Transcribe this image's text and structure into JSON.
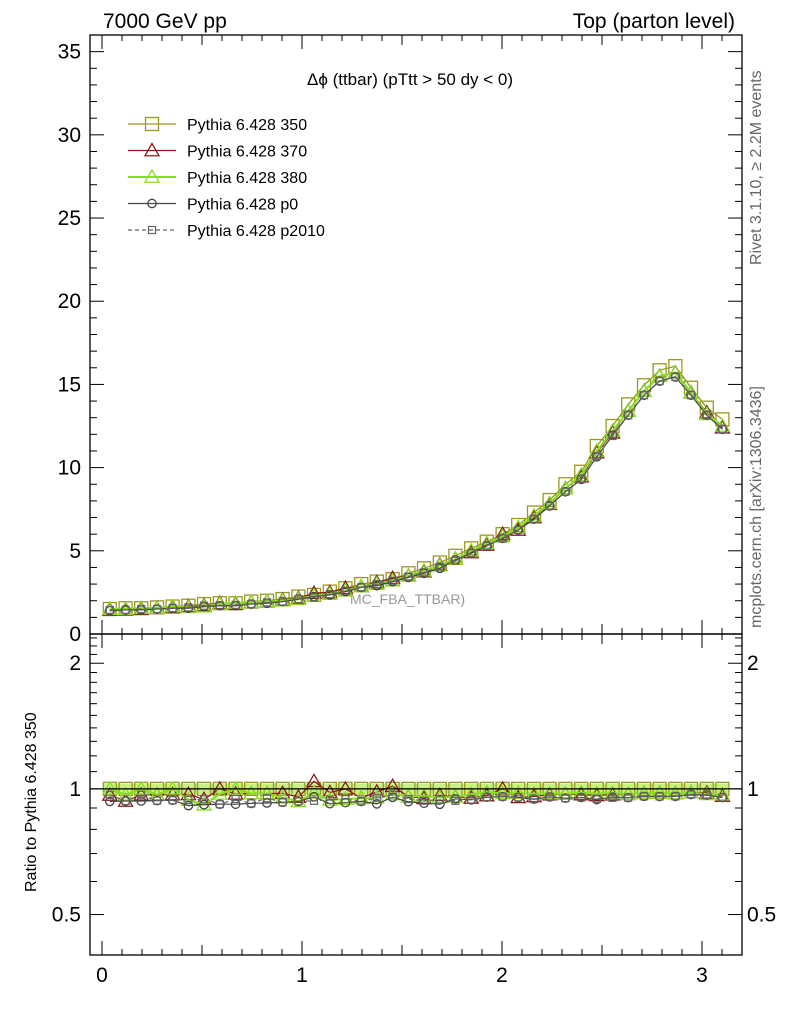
{
  "header": {
    "left": "7000 GeV pp",
    "right": "Top (parton level)"
  },
  "side_labels": {
    "rivet": "Rivet 3.1.10, ≥ 2.2M events",
    "mcplots": "mcplots.cern.ch [arXiv:1306.3436]"
  },
  "chart_data": [
    {
      "type": "line",
      "title": "Δϕ (ttbar) (pTtt > 50 dy < 0)",
      "watermark": "MC_FBA_TTBAR)",
      "xlabel": "",
      "ylabel": "",
      "xlim": [
        -0.06,
        3.2
      ],
      "ylim": [
        0,
        36
      ],
      "yticks": [
        0,
        5,
        10,
        15,
        20,
        25,
        30,
        35
      ],
      "legend_position": "top-left",
      "x": [
        0.039,
        0.118,
        0.196,
        0.275,
        0.353,
        0.432,
        0.51,
        0.589,
        0.668,
        0.746,
        0.825,
        0.903,
        0.982,
        1.06,
        1.139,
        1.217,
        1.296,
        1.374,
        1.453,
        1.532,
        1.61,
        1.689,
        1.767,
        1.846,
        1.924,
        2.003,
        2.081,
        2.16,
        2.238,
        2.317,
        2.396,
        2.474,
        2.553,
        2.631,
        2.71,
        2.788,
        2.867,
        2.945,
        3.024,
        3.102
      ],
      "series": [
        {
          "name": "Pythia 6.428 350",
          "color": "#999922",
          "marker": "square",
          "dash": false,
          "values": [
            1.5,
            1.55,
            1.55,
            1.6,
            1.65,
            1.7,
            1.8,
            1.85,
            1.85,
            1.95,
            2.0,
            2.1,
            2.25,
            2.35,
            2.55,
            2.75,
            3.0,
            3.15,
            3.3,
            3.65,
            3.95,
            4.3,
            4.7,
            5.15,
            5.55,
            6.0,
            6.55,
            7.3,
            8.05,
            9.0,
            9.75,
            11.3,
            12.5,
            13.8,
            14.95,
            15.85,
            16.1,
            14.8,
            13.6,
            12.9
          ]
        },
        {
          "name": "Pythia 6.428 370",
          "color": "#8b1a1a",
          "marker": "triangle",
          "dash": false,
          "values": [
            1.45,
            1.45,
            1.5,
            1.55,
            1.6,
            1.65,
            1.7,
            1.85,
            1.8,
            1.9,
            1.95,
            2.05,
            2.15,
            2.45,
            2.5,
            2.75,
            2.85,
            3.1,
            3.35,
            3.5,
            3.75,
            4.15,
            4.5,
            4.9,
            5.35,
            6.0,
            6.25,
            7.0,
            7.8,
            8.75,
            9.45,
            10.9,
            12.1,
            13.4,
            14.6,
            15.5,
            15.7,
            14.5,
            13.3,
            12.4
          ]
        },
        {
          "name": "Pythia 6.428 380",
          "color": "#88dd22",
          "marker": "triangle",
          "dash": false,
          "values": [
            1.5,
            1.5,
            1.55,
            1.55,
            1.65,
            1.6,
            1.65,
            1.8,
            1.85,
            1.9,
            1.95,
            2.0,
            2.1,
            2.3,
            2.4,
            2.6,
            2.85,
            3.0,
            3.2,
            3.5,
            3.8,
            4.1,
            4.5,
            5.0,
            5.45,
            5.85,
            6.4,
            7.1,
            7.85,
            8.75,
            9.55,
            11.0,
            12.2,
            13.4,
            14.6,
            15.5,
            15.7,
            14.5,
            13.2,
            12.5
          ]
        },
        {
          "name": "Pythia 6.428 p0",
          "color": "#444444",
          "marker": "circle",
          "dash": false,
          "values": [
            1.4,
            1.45,
            1.45,
            1.5,
            1.55,
            1.55,
            1.65,
            1.7,
            1.7,
            1.8,
            1.85,
            1.95,
            2.1,
            2.25,
            2.35,
            2.55,
            2.8,
            2.9,
            3.15,
            3.4,
            3.65,
            3.95,
            4.45,
            4.85,
            5.3,
            5.75,
            6.25,
            6.9,
            7.7,
            8.55,
            9.3,
            10.65,
            11.95,
            13.15,
            14.35,
            15.2,
            15.45,
            14.35,
            13.15,
            12.3
          ]
        },
        {
          "name": "Pythia 6.428 p2010",
          "color": "#666666",
          "marker": "square-small",
          "dash": true,
          "values": [
            1.45,
            1.45,
            1.5,
            1.5,
            1.55,
            1.6,
            1.7,
            1.7,
            1.75,
            1.8,
            1.9,
            1.95,
            2.1,
            2.2,
            2.4,
            2.6,
            2.8,
            3.0,
            3.2,
            3.45,
            3.7,
            4.05,
            4.4,
            4.85,
            5.3,
            5.75,
            6.25,
            6.9,
            7.7,
            8.55,
            9.3,
            10.7,
            11.9,
            13.15,
            14.35,
            15.2,
            15.45,
            14.35,
            13.15,
            12.3
          ]
        }
      ]
    },
    {
      "type": "line",
      "title": "",
      "xlabel": "",
      "ylabel": "Ratio to Pythia 6.428 350",
      "xlim": [
        -0.06,
        3.2
      ],
      "ylim": [
        0.4,
        2.35
      ],
      "log_y": true,
      "xticks": [
        "0",
        "1",
        "2",
        "3"
      ],
      "yticks": [
        {
          "value": 0.5,
          "label": "0.5"
        },
        {
          "value": 1,
          "label": "1"
        },
        {
          "value": 2,
          "label": "2"
        }
      ],
      "reference_line": 1,
      "reference_band": [
        0.97,
        1.03
      ],
      "series_ref": "ratios of each series in the upper panel to Pythia 6.428 350"
    }
  ]
}
